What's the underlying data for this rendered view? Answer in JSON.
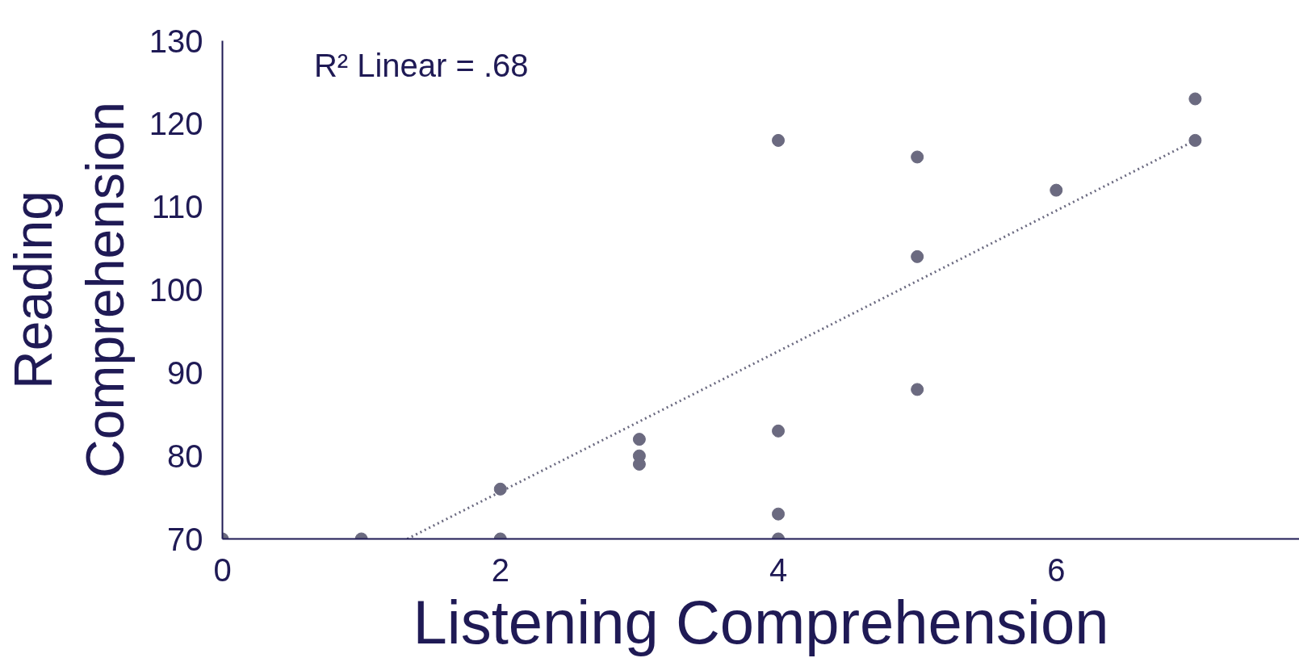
{
  "chart_data": {
    "type": "scatter",
    "xlabel": "Listening Comprehension",
    "ylabel": "Reading Comprehension",
    "annotations": [
      "R² Linear = .68"
    ],
    "xlim": [
      0,
      7.75
    ],
    "ylim": [
      70,
      130
    ],
    "xticks": [
      0,
      2,
      4,
      6
    ],
    "yticks": [
      70,
      80,
      90,
      100,
      110,
      120,
      130
    ],
    "grid": false,
    "series": [
      {
        "marker": "circle",
        "color": "#6b6a80",
        "x": [
          0,
          1,
          2,
          2,
          3,
          3,
          3,
          4,
          4,
          4,
          4,
          5,
          5,
          5,
          6,
          7,
          7
        ],
        "values": [
          70,
          70,
          76,
          70,
          82,
          80,
          79,
          118,
          83,
          73,
          70,
          116,
          104,
          88,
          112,
          123,
          118
        ]
      },
      {
        "type": "line",
        "line_style": "dotted",
        "color": "#6b6a80",
        "x": [
          1.33,
          7
        ],
        "values": [
          70,
          118
        ]
      }
    ]
  }
}
